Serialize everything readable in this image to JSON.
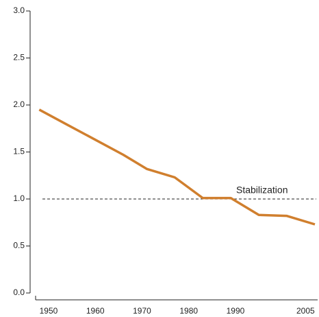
{
  "chart_data": {
    "type": "line",
    "x": [
      1948,
      1954,
      1960,
      1966,
      1971,
      1977,
      1983,
      1989,
      1995,
      2001,
      2007
    ],
    "series": [
      {
        "color": "#d07f2e",
        "values": [
          1.95,
          1.79,
          1.63,
          1.47,
          1.32,
          1.23,
          1.01,
          1.01,
          0.83,
          0.82,
          0.73
        ]
      }
    ],
    "xlim": [
      1947,
      2007
    ],
    "xticks": [
      1950,
      1960,
      1970,
      1980,
      1990,
      2005
    ],
    "ylim": [
      0,
      3
    ],
    "yticks": [
      {
        "value": 0,
        "label": "0.0"
      },
      0.5,
      {
        "value": 1,
        "label": "1.0"
      },
      1.5,
      {
        "value": 2,
        "label": "2.0"
      },
      2.5,
      {
        "value": 3,
        "label": "3.0"
      }
    ],
    "reference_line": {
      "value": 1,
      "label": "Stabilization"
    }
  }
}
